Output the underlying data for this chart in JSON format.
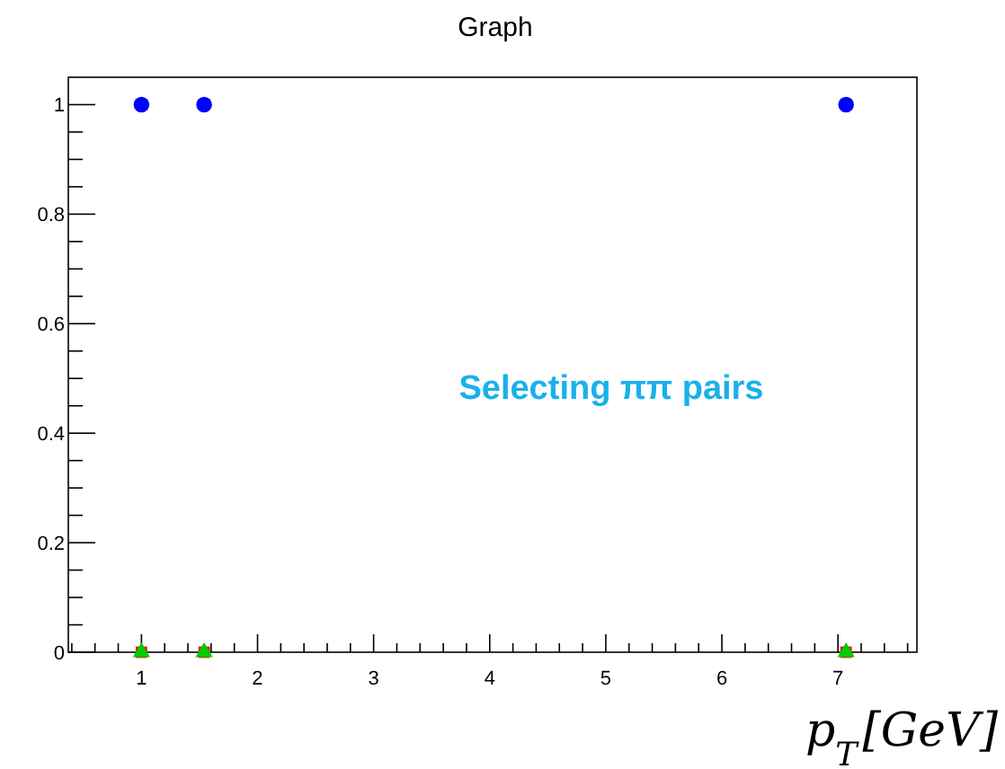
{
  "chart_data": {
    "type": "scatter",
    "title": "Graph",
    "xlabel": "p$_{T}$[GeV]",
    "annotations": [
      "Selecting ππ pairs"
    ],
    "x": [
      1.0,
      1.54,
      7.07
    ],
    "series": [
      {
        "color": "#0000ff",
        "values": [
          1,
          1,
          1
        ],
        "marker": "circle"
      },
      {
        "color": "#ff0000",
        "values": [
          0,
          0,
          0
        ],
        "marker": "square"
      },
      {
        "color": "#00cc00",
        "values": [
          0,
          0,
          0
        ],
        "marker": "triangle"
      }
    ],
    "xlim": [
      0.37,
      7.68
    ],
    "ylim": [
      0,
      1.05
    ],
    "xticks": [
      {
        "value": 0.4,
        "label": null
      },
      {
        "value": 0.6,
        "label": null
      },
      {
        "value": 0.8,
        "label": null
      },
      1,
      {
        "value": 1.2,
        "label": null
      },
      {
        "value": 1.4,
        "label": null
      },
      {
        "value": 1.6,
        "label": null
      },
      {
        "value": 1.8,
        "label": null
      },
      2,
      {
        "value": 2.2,
        "label": null
      },
      {
        "value": 2.4,
        "label": null
      },
      {
        "value": 2.6,
        "label": null
      },
      {
        "value": 2.8,
        "label": null
      },
      3,
      {
        "value": 3.2,
        "label": null
      },
      {
        "value": 3.4,
        "label": null
      },
      {
        "value": 3.6,
        "label": null
      },
      {
        "value": 3.8,
        "label": null
      },
      4,
      {
        "value": 4.2,
        "label": null
      },
      {
        "value": 4.4,
        "label": null
      },
      {
        "value": 4.6,
        "label": null
      },
      {
        "value": 4.8,
        "label": null
      },
      5,
      {
        "value": 5.2,
        "label": null
      },
      {
        "value": 5.4,
        "label": null
      },
      {
        "value": 5.6,
        "label": null
      },
      {
        "value": 5.8,
        "label": null
      },
      6,
      {
        "value": 6.2,
        "label": null
      },
      {
        "value": 6.4,
        "label": null
      },
      {
        "value": 6.6,
        "label": null
      },
      {
        "value": 6.8,
        "label": null
      },
      7,
      {
        "value": 7.2,
        "label": null
      },
      {
        "value": 7.4,
        "label": null
      },
      {
        "value": 7.6,
        "label": null
      }
    ],
    "yticks": [
      0,
      {
        "value": 0.05,
        "label": null
      },
      {
        "value": 0.1,
        "label": null
      },
      {
        "value": 0.15,
        "label": null
      },
      0.2,
      {
        "value": 0.25,
        "label": null
      },
      {
        "value": 0.3,
        "label": null
      },
      {
        "value": 0.35,
        "label": null
      },
      0.4,
      {
        "value": 0.45,
        "label": null
      },
      {
        "value": 0.5,
        "label": null
      },
      {
        "value": 0.55,
        "label": null
      },
      0.6,
      {
        "value": 0.65,
        "label": null
      },
      {
        "value": 0.7,
        "label": null
      },
      {
        "value": 0.75,
        "label": null
      },
      0.8,
      {
        "value": 0.85,
        "label": null
      },
      {
        "value": 0.9,
        "label": null
      },
      {
        "value": 0.95,
        "label": null
      },
      1
    ],
    "grid": false
  }
}
